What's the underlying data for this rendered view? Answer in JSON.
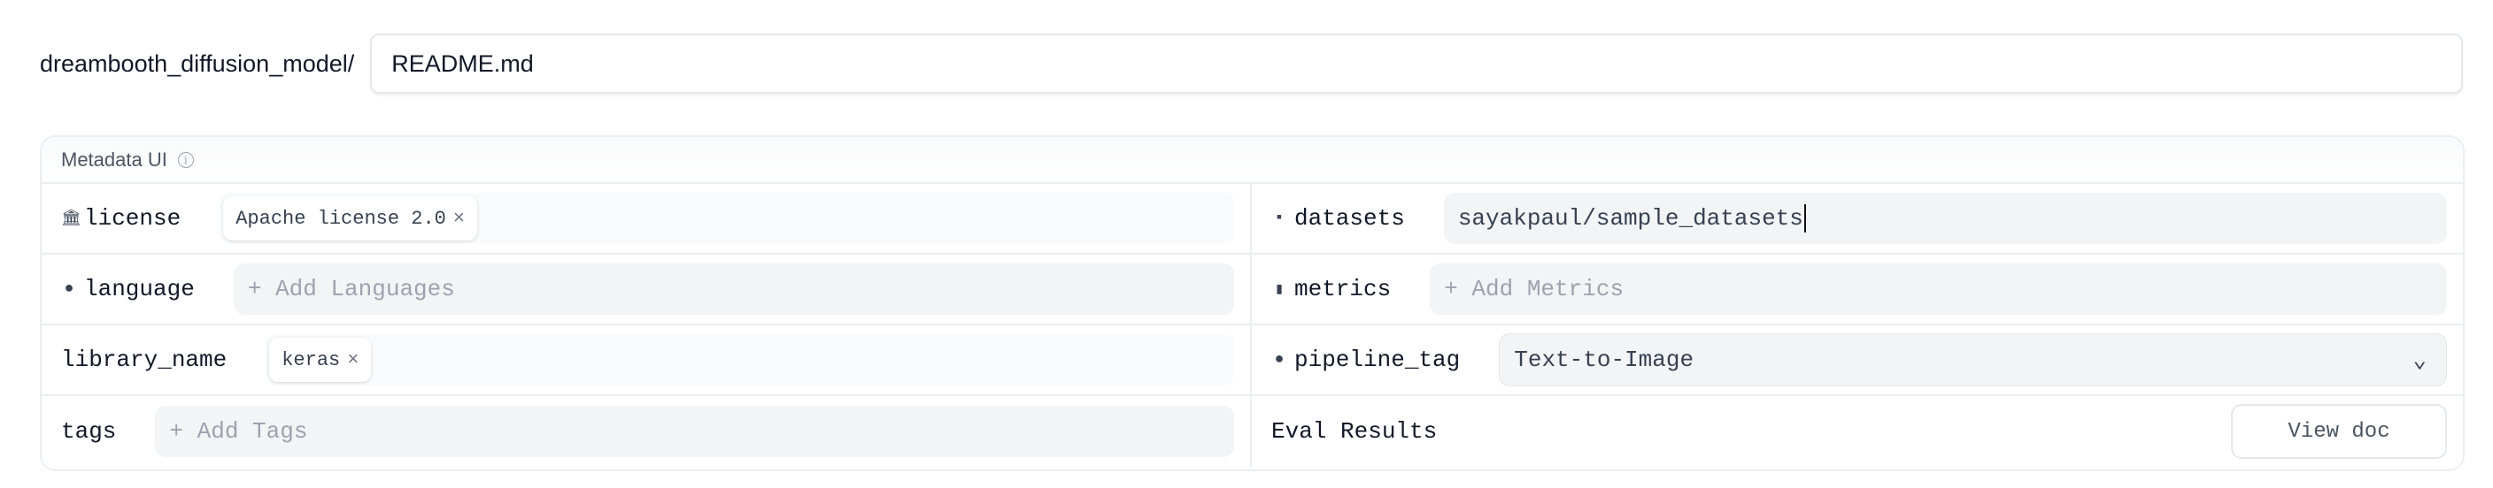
{
  "path": {
    "prefix": "dreambooth_diffusion_model/",
    "filename": "README.md"
  },
  "metadata": {
    "title": "Metadata UI",
    "info_icon": "info-icon",
    "license": {
      "label": "license",
      "icon": "bank-icon",
      "chips": [
        "Apache license 2.0"
      ]
    },
    "language": {
      "label": "language",
      "icon": "speech-bubble-icon",
      "placeholder": "+ Add Languages"
    },
    "library_name": {
      "label": "library_name",
      "chips": [
        "keras"
      ]
    },
    "tags": {
      "label": "tags",
      "placeholder": "+ Add Tags"
    },
    "datasets": {
      "label": "datasets",
      "icon": "database-icon",
      "value": "sayakpaul/sample_datasets"
    },
    "metrics": {
      "label": "metrics",
      "icon": "bar-chart-icon",
      "placeholder": "+ Add Metrics"
    },
    "pipeline_tag": {
      "label": "pipeline_tag",
      "icon": "pipeline-icon",
      "value": "Text-to-Image"
    },
    "eval": {
      "label": "Eval Results",
      "button": "View doc"
    }
  },
  "chip_remove": "×"
}
